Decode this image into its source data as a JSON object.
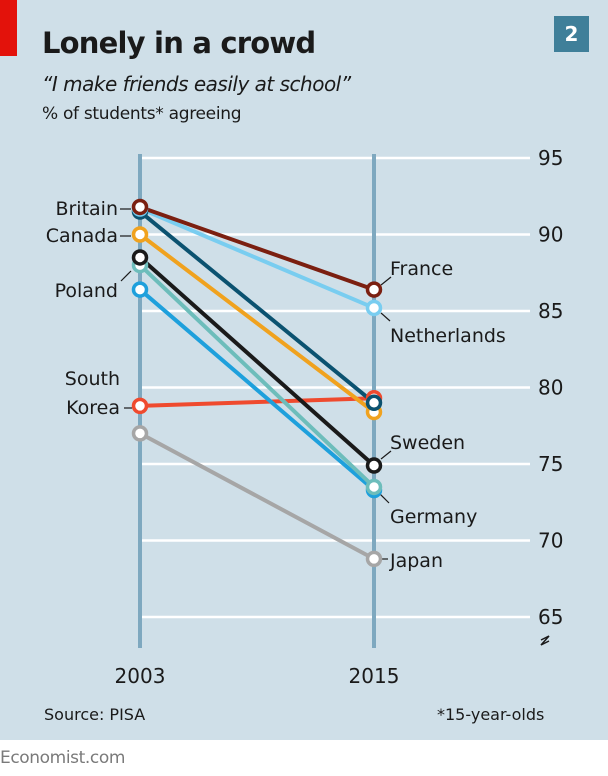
{
  "header": {
    "title": "Lonely in a crowd",
    "subtitle": "“I make friends easily at school”",
    "unit": "% of students* agreeing",
    "chart_number": "2"
  },
  "footer": {
    "source": "Source: PISA",
    "footnote": "*15-year-olds",
    "brand": "Economist.com"
  },
  "colors": {
    "background": "#cfdfe8",
    "accent_red": "#e3120b",
    "chart_number_bg": "#3f7f99",
    "axis_line": "#7ea8bf",
    "gridline": "#ffffff"
  },
  "chart_data": {
    "type": "line",
    "subtype": "slope",
    "title": "Lonely in a crowd",
    "subtitle": "“I make friends easily at school”",
    "ylabel": "% of students* agreeing",
    "xlabel": "",
    "x": [
      "2003",
      "2015"
    ],
    "ylim": [
      65,
      95
    ],
    "yticks": [
      95,
      90,
      85,
      80,
      75,
      70,
      65
    ],
    "ytick_labels": [
      "95",
      "90",
      "85",
      "80",
      "75",
      "70",
      "65"
    ],
    "y_axis_position": "right",
    "y_axis_break": true,
    "grid": true,
    "series": [
      {
        "name": "France",
        "color": "#7b1f10",
        "values": [
          91.8,
          86.4
        ],
        "label_side": "right"
      },
      {
        "name": "Netherlands",
        "color": "#79cdf0",
        "values": [
          91.7,
          85.2
        ],
        "label_side": "right"
      },
      {
        "name": "Britain",
        "color": "#0b5270",
        "values": [
          91.5,
          79.0
        ],
        "label_side": "left"
      },
      {
        "name": "Canada",
        "color": "#f0a21e",
        "values": [
          90.0,
          78.4
        ],
        "label_side": "left"
      },
      {
        "name": "Sweden",
        "color": "#1a1a1a",
        "values": [
          88.5,
          74.9
        ],
        "label_side": "right"
      },
      {
        "name": "Germany",
        "color": "#6dbdbb",
        "values": [
          88.0,
          73.5
        ],
        "label_side": "right"
      },
      {
        "name": "Poland",
        "color": "#1ea0dc",
        "values": [
          86.4,
          73.3
        ],
        "label_side": "left"
      },
      {
        "name": "South Korea",
        "color": "#ef4a2e",
        "values": [
          78.8,
          79.3
        ],
        "label_side": "left"
      },
      {
        "name": "Japan",
        "color": "#a6a6a6",
        "values": [
          77.0,
          68.8
        ],
        "label_side": "right"
      }
    ],
    "labels": {
      "left": [
        {
          "series": "Britain",
          "lines": [
            "Britain"
          ]
        },
        {
          "series": "Canada",
          "lines": [
            "Canada"
          ]
        },
        {
          "series": "Poland",
          "lines": [
            "Poland"
          ]
        },
        {
          "series": "South Korea",
          "lines": [
            "South",
            "Korea"
          ]
        }
      ],
      "right": [
        {
          "series": "France",
          "lines": [
            "France"
          ]
        },
        {
          "series": "Netherlands",
          "lines": [
            "Netherlands"
          ]
        },
        {
          "series": "Sweden",
          "lines": [
            "Sweden"
          ]
        },
        {
          "series": "Germany",
          "lines": [
            "Germany"
          ]
        },
        {
          "series": "Japan",
          "lines": [
            "Japan"
          ]
        }
      ]
    }
  }
}
